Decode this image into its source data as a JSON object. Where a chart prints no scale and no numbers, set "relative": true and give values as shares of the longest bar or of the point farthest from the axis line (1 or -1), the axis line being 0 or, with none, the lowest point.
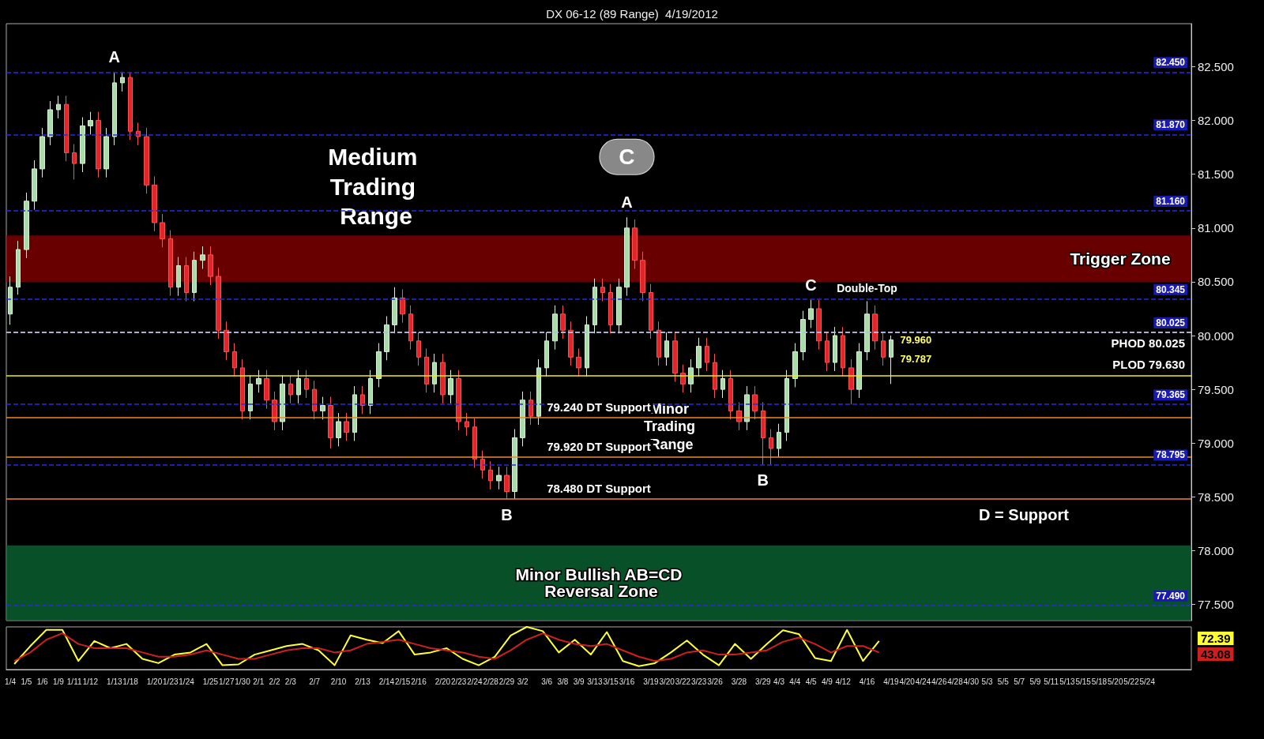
{
  "chart_data": [
    {
      "type": "candlestick",
      "title": "DX 06-12 (89 Range)  4/19/2012",
      "categories": [
        "1/4",
        null,
        "1/5",
        null,
        "1/6",
        null,
        "1/9",
        null,
        "1/11",
        null,
        "1/12",
        null,
        null,
        "1/13",
        null,
        "1/18",
        null,
        null,
        "1/20",
        null,
        "1/23",
        null,
        "1/24",
        null,
        null,
        "1/25",
        null,
        "1/27",
        null,
        "1/30",
        null,
        "2/1",
        null,
        "2/2",
        null,
        "2/3",
        null,
        null,
        "2/7",
        null,
        null,
        "2/10",
        null,
        null,
        "2/13",
        null,
        null,
        "2/14",
        null,
        "2/15",
        null,
        "2/16",
        null,
        null,
        "2/20",
        null,
        "2/23",
        null,
        "2/24",
        null,
        "2/28",
        null,
        "2/29",
        null,
        "3/2",
        null,
        null,
        "3/6",
        null,
        "3/8",
        null,
        "3/9",
        null,
        "3/13",
        null,
        "3/15",
        null,
        "3/16",
        null,
        null,
        "3/19",
        null,
        "3/20",
        null,
        "3/22",
        null,
        "3/23",
        null,
        "3/26",
        null,
        null,
        "3/28",
        null,
        null,
        "3/29",
        null,
        "4/3",
        null,
        "4/4",
        null,
        "4/5",
        null,
        "4/9",
        null,
        "4/12",
        null,
        null,
        "4/16",
        null,
        null,
        "4/19",
        null,
        "4/20",
        null,
        "4/24",
        null,
        "4/26",
        null,
        "4/28",
        null,
        "4/30",
        null,
        "5/3",
        null,
        "5/5",
        null,
        "5/7",
        null,
        "5/9",
        null,
        "5/11",
        null,
        "5/13",
        null,
        "5/15",
        null,
        "5/18",
        null,
        "5/20",
        null,
        "5/22",
        null,
        "5/24",
        null,
        null,
        null,
        null,
        null
      ],
      "ohlc": [
        [
          80.2,
          80.55,
          80.1,
          80.45
        ],
        [
          80.45,
          80.88,
          80.38,
          80.8
        ],
        [
          80.8,
          81.33,
          80.72,
          81.25
        ],
        [
          81.25,
          81.63,
          81.17,
          81.55
        ],
        [
          81.55,
          81.93,
          81.47,
          81.85
        ],
        [
          81.85,
          82.18,
          81.77,
          82.1
        ],
        [
          82.1,
          82.23,
          82.02,
          82.15
        ],
        [
          82.15,
          82.23,
          81.62,
          81.7
        ],
        [
          81.7,
          81.78,
          81.45,
          81.6
        ],
        [
          81.6,
          82.03,
          81.52,
          81.95
        ],
        [
          81.95,
          82.08,
          81.87,
          82.0
        ],
        [
          82.0,
          82.08,
          81.47,
          81.55
        ],
        [
          81.55,
          81.93,
          81.47,
          81.85
        ],
        [
          81.85,
          82.45,
          81.77,
          82.35
        ],
        [
          82.35,
          82.45,
          82.27,
          82.4
        ],
        [
          82.4,
          82.45,
          81.82,
          81.9
        ],
        [
          81.9,
          81.98,
          81.77,
          81.85
        ],
        [
          81.85,
          81.93,
          81.32,
          81.4
        ],
        [
          81.4,
          81.48,
          80.97,
          81.05
        ],
        [
          81.05,
          81.13,
          80.82,
          80.9
        ],
        [
          80.9,
          80.98,
          80.37,
          80.45
        ],
        [
          80.45,
          80.73,
          80.37,
          80.65
        ],
        [
          80.65,
          80.73,
          80.32,
          80.4
        ],
        [
          80.4,
          80.78,
          80.32,
          80.7
        ],
        [
          80.7,
          80.83,
          80.62,
          80.75
        ],
        [
          80.75,
          80.83,
          80.47,
          80.55
        ],
        [
          80.55,
          80.63,
          79.97,
          80.05
        ],
        [
          80.05,
          80.13,
          79.77,
          79.85
        ],
        [
          79.85,
          79.93,
          79.62,
          79.7
        ],
        [
          79.7,
          79.78,
          79.22,
          79.3
        ],
        [
          79.3,
          79.63,
          79.22,
          79.55
        ],
        [
          79.55,
          79.68,
          79.47,
          79.6
        ],
        [
          79.6,
          79.68,
          79.32,
          79.4
        ],
        [
          79.4,
          79.48,
          79.12,
          79.2
        ],
        [
          79.2,
          79.63,
          79.12,
          79.55
        ],
        [
          79.55,
          79.63,
          79.37,
          79.45
        ],
        [
          79.45,
          79.68,
          79.37,
          79.6
        ],
        [
          79.6,
          79.68,
          79.42,
          79.5
        ],
        [
          79.5,
          79.58,
          79.22,
          79.3
        ],
        [
          79.3,
          79.43,
          79.22,
          79.35
        ],
        [
          79.35,
          79.43,
          78.95,
          79.05
        ],
        [
          79.05,
          79.28,
          78.97,
          79.2
        ],
        [
          79.2,
          79.28,
          79.02,
          79.1
        ],
        [
          79.1,
          79.53,
          79.02,
          79.45
        ],
        [
          79.45,
          79.53,
          79.27,
          79.35
        ],
        [
          79.35,
          79.68,
          79.27,
          79.6
        ],
        [
          79.6,
          79.93,
          79.52,
          79.85
        ],
        [
          79.85,
          80.18,
          79.77,
          80.1
        ],
        [
          80.1,
          80.45,
          80.02,
          80.35
        ],
        [
          80.35,
          80.43,
          80.12,
          80.2
        ],
        [
          80.2,
          80.28,
          79.87,
          79.95
        ],
        [
          79.95,
          80.03,
          79.72,
          79.8
        ],
        [
          79.8,
          79.88,
          79.47,
          79.55
        ],
        [
          79.55,
          79.83,
          79.47,
          79.75
        ],
        [
          79.75,
          79.83,
          79.37,
          79.45
        ],
        [
          79.45,
          79.68,
          79.37,
          79.6
        ],
        [
          79.6,
          79.68,
          79.12,
          79.2
        ],
        [
          79.2,
          79.28,
          79.07,
          79.15
        ],
        [
          79.15,
          79.23,
          78.77,
          78.85
        ],
        [
          78.85,
          78.93,
          78.67,
          78.75
        ],
        [
          78.75,
          78.83,
          78.57,
          78.65
        ],
        [
          78.65,
          78.78,
          78.57,
          78.7
        ],
        [
          78.7,
          78.78,
          78.48,
          78.55
        ],
        [
          78.55,
          79.13,
          78.48,
          79.05
        ],
        [
          79.05,
          79.48,
          78.97,
          79.4
        ],
        [
          79.4,
          79.48,
          79.17,
          79.25
        ],
        [
          79.25,
          79.78,
          79.17,
          79.7
        ],
        [
          79.7,
          80.03,
          79.62,
          79.95
        ],
        [
          79.95,
          80.28,
          79.87,
          80.2
        ],
        [
          80.2,
          80.28,
          79.97,
          80.05
        ],
        [
          80.05,
          80.13,
          79.72,
          79.8
        ],
        [
          79.8,
          79.88,
          79.62,
          79.7
        ],
        [
          79.7,
          80.18,
          79.62,
          80.1
        ],
        [
          80.1,
          80.53,
          80.02,
          80.45
        ],
        [
          80.45,
          80.53,
          80.32,
          80.4
        ],
        [
          80.4,
          80.48,
          80.02,
          80.1
        ],
        [
          80.1,
          80.53,
          80.02,
          80.45
        ],
        [
          80.45,
          81.1,
          80.37,
          81.0
        ],
        [
          81.0,
          81.08,
          80.62,
          80.7
        ],
        [
          80.7,
          80.78,
          80.32,
          80.4
        ],
        [
          80.4,
          80.48,
          79.97,
          80.05
        ],
        [
          80.05,
          80.13,
          79.72,
          79.8
        ],
        [
          79.8,
          80.03,
          79.72,
          79.95
        ],
        [
          79.95,
          80.03,
          79.57,
          79.65
        ],
        [
          79.65,
          79.73,
          79.47,
          79.55
        ],
        [
          79.55,
          79.78,
          79.47,
          79.7
        ],
        [
          79.7,
          79.98,
          79.62,
          79.9
        ],
        [
          79.9,
          79.98,
          79.67,
          79.75
        ],
        [
          79.75,
          79.83,
          79.42,
          79.5
        ],
        [
          79.5,
          79.68,
          79.42,
          79.6
        ],
        [
          79.6,
          79.68,
          79.22,
          79.3
        ],
        [
          79.3,
          79.38,
          79.12,
          79.2
        ],
        [
          79.2,
          79.53,
          79.12,
          79.45
        ],
        [
          79.45,
          79.53,
          79.22,
          79.3
        ],
        [
          79.3,
          79.38,
          78.8,
          79.05
        ],
        [
          79.05,
          79.13,
          78.8,
          78.95
        ],
        [
          78.95,
          79.18,
          78.87,
          79.1
        ],
        [
          79.1,
          79.68,
          79.02,
          79.6
        ],
        [
          79.6,
          79.93,
          79.52,
          79.85
        ],
        [
          79.85,
          80.23,
          79.77,
          80.15
        ],
        [
          80.15,
          80.33,
          80.07,
          80.25
        ],
        [
          80.25,
          80.33,
          79.87,
          79.95
        ],
        [
          79.95,
          80.03,
          79.67,
          79.75
        ],
        [
          79.75,
          80.08,
          79.67,
          80.0
        ],
        [
          80.0,
          80.08,
          79.62,
          79.7
        ],
        [
          79.7,
          79.78,
          79.36,
          79.5
        ],
        [
          79.5,
          79.93,
          79.42,
          79.85
        ],
        [
          79.85,
          80.32,
          79.77,
          80.2
        ],
        [
          80.2,
          80.28,
          79.87,
          79.95
        ],
        [
          79.95,
          80.03,
          79.72,
          79.8
        ],
        [
          79.8,
          80.0,
          79.55,
          79.96
        ],
        null,
        null,
        null,
        null,
        null,
        null,
        null,
        null,
        null,
        null,
        null,
        null,
        null,
        null,
        null,
        null,
        null,
        null,
        null,
        null,
        null,
        null,
        null,
        null,
        null,
        null,
        null,
        null,
        null,
        null,
        null,
        null,
        null,
        null,
        null,
        null,
        null
      ],
      "ylim": [
        77.35,
        82.9
      ],
      "yticks": [
        {
          "value": 77.5,
          "label": "77.500"
        },
        {
          "value": 78,
          "label": "78.000"
        },
        {
          "value": 78.5,
          "label": "78.500"
        },
        {
          "value": 79,
          "label": "79.000"
        },
        {
          "value": 79.5,
          "label": "79.500"
        },
        {
          "value": 80,
          "label": "80.000"
        },
        {
          "value": 80.5,
          "label": "80.500"
        },
        {
          "value": 81,
          "label": "81.000"
        },
        {
          "value": 81.5,
          "label": "81.500"
        },
        {
          "value": 82,
          "label": "82.000"
        },
        {
          "value": 82.5,
          "label": "82.500"
        }
      ],
      "ref_lines": [
        {
          "axis": "y",
          "value": 82.45,
          "label": "82.450",
          "color": "#2a2ae0",
          "line_style": "dashed"
        },
        {
          "axis": "y",
          "value": 81.87,
          "label": "81.870",
          "color": "#2a2ae0",
          "line_style": "dashed"
        },
        {
          "axis": "y",
          "value": 81.16,
          "label": "81.160",
          "color": "#2a2ae0",
          "line_style": "dashed"
        },
        {
          "axis": "y",
          "value": 80.345,
          "label": "80.345",
          "color": "#2a2ae0",
          "line_style": "dashed"
        },
        {
          "axis": "y",
          "value": 80.025,
          "label": "80.025",
          "color": "#2a2ae0",
          "line_style": "dashed"
        },
        {
          "axis": "y",
          "value": 79.365,
          "label": "79.365",
          "color": "#2a2ae0",
          "line_style": "dashed"
        },
        {
          "axis": "y",
          "value": 78.795,
          "label": "78.795",
          "color": "#2a2ae0",
          "line_style": "dashed"
        },
        {
          "axis": "y",
          "value": 77.49,
          "label": "77.490",
          "color": "#2a2ae0",
          "line_style": "dashed"
        },
        {
          "axis": "y",
          "value": 80.025,
          "label": "PHOD 80.025",
          "color": "#dddddd",
          "line_style": "dashed"
        },
        {
          "axis": "y",
          "value": 79.63,
          "label": "PLOD 79.630",
          "color": "#f5f000",
          "line_style": "solid"
        },
        {
          "axis": "y",
          "value": 79.24,
          "label": "79.240 DT Support",
          "color": "#f08a24",
          "line_style": "solid"
        },
        {
          "axis": "y",
          "value": 78.87,
          "label": "79.920 DT Support",
          "color": "#f08a24",
          "line_style": "solid"
        },
        {
          "axis": "y",
          "value": 78.48,
          "label": "78.480 DT Support",
          "color": "#f08a24",
          "line_style": "solid"
        }
      ],
      "bands": [
        {
          "axis": "y",
          "from": 80.5,
          "to": 80.93,
          "label": "Trigger Zone",
          "color": "#8b0000"
        },
        {
          "axis": "y",
          "from": 77.35,
          "to": 78.05,
          "label": "Minor Bullish AB=CD Reversal Zone",
          "color": "#0b6b35"
        }
      ],
      "annotations": [
        {
          "text": "A",
          "x": "1/13",
          "y": 82.45
        },
        {
          "text": "B",
          "x": "2/29",
          "y": 78.48
        },
        {
          "text": "A",
          "x": "3/16",
          "y": 81.1
        },
        {
          "text": "C",
          "x": "3/16",
          "y": 81.1
        },
        {
          "text": "B",
          "x": "3/29",
          "y": 78.8
        },
        {
          "text": "C",
          "x": "4/5",
          "y": 80.33
        },
        {
          "text": "Double-Top",
          "x": "4/16",
          "y": 80.32
        },
        {
          "text": "79.960",
          "x": "4/19",
          "y": 79.96
        },
        {
          "text": "79.787",
          "x": "4/19",
          "y": 79.787
        },
        "Medium Trading Range",
        "Minor Trading Range",
        "D = Support"
      ]
    },
    {
      "type": "line",
      "relative": true,
      "tick_labels": false,
      "categories": [
        null,
        null,
        null,
        null,
        null,
        null,
        null,
        null,
        null,
        null,
        null,
        null,
        null,
        null,
        null,
        null,
        null,
        null,
        null,
        null,
        null,
        null,
        null,
        null,
        null,
        null,
        null,
        null,
        null,
        null,
        null,
        null,
        null,
        null,
        null,
        null,
        null,
        null,
        null,
        null,
        null,
        null,
        null,
        null,
        null,
        null,
        null,
        null,
        null,
        null,
        null,
        null,
        null,
        null,
        null,
        null,
        null,
        null,
        null,
        null,
        null,
        null,
        null,
        null,
        null,
        null,
        null,
        null,
        null,
        null,
        null,
        null,
        null,
        null
      ],
      "series": [
        {
          "color": "#ffff33",
          "values": [
            0.13,
            0.55,
            0.93,
            0.93,
            0.2,
            0.67,
            0.5,
            0.6,
            0.25,
            0.15,
            0.35,
            0.4,
            0.6,
            0.1,
            0.12,
            0.35,
            0.45,
            0.55,
            0.6,
            0.45,
            0.1,
            0.8,
            0.7,
            0.62,
            0.9,
            0.35,
            0.4,
            0.5,
            0.25,
            0.1,
            0.3,
            0.8,
            1,
            0.9,
            0.4,
            0.7,
            0.35,
            0.88,
            0.2,
            0.08,
            0.15,
            0.4,
            0.68,
            0.35,
            0.1,
            0.6,
            0.25,
            0.6,
            0.92,
            0.83,
            0.27,
            0.2,
            0.93,
            0.2,
            0.67,
            null,
            null,
            null,
            null,
            null,
            null,
            null,
            null,
            null,
            null,
            null,
            null,
            null,
            null,
            null,
            null,
            null,
            null,
            null
          ]
        },
        {
          "color": "#cc2020",
          "values": [
            0.2,
            0.4,
            0.7,
            0.85,
            0.6,
            0.5,
            0.5,
            0.5,
            0.4,
            0.3,
            0.3,
            0.35,
            0.45,
            0.35,
            0.25,
            0.25,
            0.35,
            0.45,
            0.5,
            0.5,
            0.4,
            0.45,
            0.6,
            0.65,
            0.7,
            0.6,
            0.5,
            0.45,
            0.4,
            0.3,
            0.25,
            0.45,
            0.7,
            0.85,
            0.7,
            0.6,
            0.55,
            0.6,
            0.45,
            0.3,
            0.2,
            0.25,
            0.4,
            0.45,
            0.35,
            0.35,
            0.4,
            0.45,
            0.65,
            0.75,
            0.6,
            0.4,
            0.55,
            0.55,
            0.4,
            null,
            null,
            null,
            null,
            null,
            null,
            null,
            null,
            null,
            null,
            null,
            null,
            null,
            null,
            null,
            null,
            null,
            null,
            null
          ]
        }
      ],
      "annotations": [
        "72.39",
        "43.08"
      ]
    }
  ]
}
